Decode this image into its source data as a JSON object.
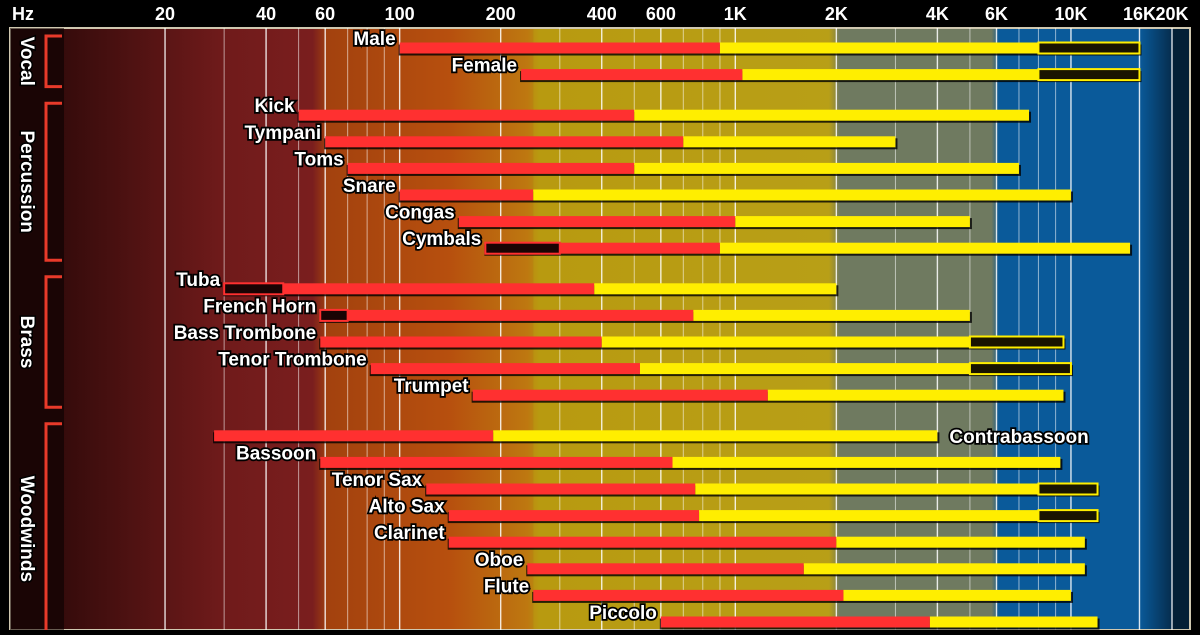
{
  "chart_data": {
    "type": "bar",
    "chart_kind": "frequency range chart",
    "x_scale": "log",
    "xlim": [
      10,
      20000
    ],
    "axis_unit": "Hz",
    "ticks": [
      {
        "value": 20,
        "label": "20"
      },
      {
        "value": 40,
        "label": "40"
      },
      {
        "value": 60,
        "label": "60"
      },
      {
        "value": 100,
        "label": "100"
      },
      {
        "value": 200,
        "label": "200"
      },
      {
        "value": 400,
        "label": "400"
      },
      {
        "value": 600,
        "label": "600"
      },
      {
        "value": 1000,
        "label": "1K"
      },
      {
        "value": 2000,
        "label": "2K"
      },
      {
        "value": 4000,
        "label": "4K"
      },
      {
        "value": 6000,
        "label": "6K"
      },
      {
        "value": 10000,
        "label": "10K"
      },
      {
        "value": 16000,
        "label": "16K"
      },
      {
        "value": 20000,
        "label": "20K"
      }
    ],
    "minor_gridlines": [
      30,
      50,
      70,
      80,
      90,
      300,
      500,
      700,
      800,
      900,
      3000,
      5000,
      7000,
      8000,
      9000
    ],
    "bands": [
      {
        "from": 10,
        "to": 60,
        "color": "#7a1e1e"
      },
      {
        "from": 60,
        "to": 250,
        "color": "#b04a10"
      },
      {
        "from": 250,
        "to": 2000,
        "color": "#b89a10"
      },
      {
        "from": 2000,
        "to": 6000,
        "color": "#6f7a60"
      },
      {
        "from": 6000,
        "to": 20000,
        "color": "#0a5a9a"
      }
    ],
    "groups": [
      {
        "name": "Vocal",
        "instruments": [
          {
            "name": "Male",
            "label_side": "left",
            "low": 100,
            "mid": 900,
            "high": 8000,
            "harmonics_end": 16000
          },
          {
            "name": "Female",
            "label_side": "left",
            "low": 230,
            "mid": 1050,
            "high": 8000,
            "harmonics_end": 16000
          }
        ]
      },
      {
        "name": "Percussion",
        "instruments": [
          {
            "name": "Kick",
            "label_side": "left",
            "low": 50,
            "mid": 500,
            "high": 7500
          },
          {
            "name": "Tympani",
            "label_side": "left",
            "low": 60,
            "mid": 700,
            "high": 3000
          },
          {
            "name": "Toms",
            "label_side": "left",
            "low": 70,
            "mid": 500,
            "high": 7000
          },
          {
            "name": "Snare",
            "label_side": "left",
            "low": 100,
            "mid": 250,
            "high": 10000
          },
          {
            "name": "Congas",
            "label_side": "left",
            "low": 150,
            "mid": 1000,
            "high": 5000
          },
          {
            "name": "Cymbals",
            "label_side": "left",
            "low": 180,
            "fundamental_start": 300,
            "mid": 900,
            "high": 15000,
            "fundamental_marker_start": 180
          }
        ]
      },
      {
        "name": "Brass",
        "instruments": [
          {
            "name": "Tuba",
            "label_side": "left",
            "low": 30,
            "fundamental_start": 45,
            "mid": 380,
            "high": 2000
          },
          {
            "name": "French Horn",
            "label_side": "left",
            "low": 58,
            "fundamental_start": 70,
            "mid": 750,
            "high": 5000
          },
          {
            "name": "Bass Trombone",
            "label_side": "left",
            "low": 58,
            "mid": 400,
            "high": 5000,
            "harmonics_start": 5000,
            "harmonics_end": 9500
          },
          {
            "name": "Tenor Trombone",
            "label_side": "left",
            "low": 82,
            "mid": 520,
            "high": 5000,
            "harmonics_start": 5000,
            "harmonics_end": 10000
          },
          {
            "name": "Trumpet",
            "label_side": "left",
            "low": 165,
            "mid": 1250,
            "high": 9500
          }
        ]
      },
      {
        "name": "Woodwinds",
        "instruments": [
          {
            "name": "Contrabassoon",
            "label_side": "right",
            "low": 28,
            "mid": 190,
            "high": 4000
          },
          {
            "name": "Bassoon",
            "label_side": "left",
            "low": 58,
            "mid": 650,
            "high": 9300
          },
          {
            "name": "Tenor Sax",
            "label_side": "left",
            "low": 120,
            "mid": 760,
            "high": 8000,
            "harmonics_end": 12000
          },
          {
            "name": "Alto Sax",
            "label_side": "left",
            "low": 140,
            "mid": 780,
            "high": 8000,
            "harmonics_end": 12000
          },
          {
            "name": "Clarinet",
            "label_side": "left",
            "low": 140,
            "mid": 2000,
            "high": 11000
          },
          {
            "name": "Oboe",
            "label_side": "left",
            "low": 240,
            "mid": 1600,
            "high": 11000
          },
          {
            "name": "Flute",
            "label_side": "left",
            "low": 250,
            "mid": 2100,
            "high": 10000
          },
          {
            "name": "Piccolo",
            "label_side": "left",
            "low": 600,
            "mid": 3800,
            "high": 12000
          }
        ]
      }
    ],
    "colors": {
      "fundamental": "#ff3030",
      "harmonics": "#ffee00",
      "outline": "#000000",
      "bracket": "#e83a2a",
      "background": "#000000"
    }
  }
}
